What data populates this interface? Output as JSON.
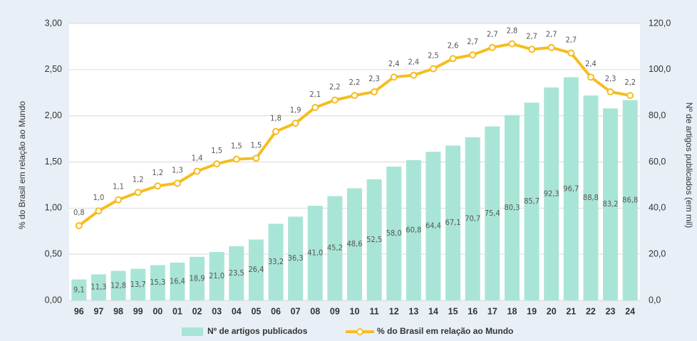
{
  "chart_data": {
    "type": "bar-line",
    "categories": [
      "96",
      "97",
      "98",
      "99",
      "00",
      "01",
      "02",
      "03",
      "04",
      "05",
      "06",
      "07",
      "08",
      "09",
      "10",
      "11",
      "12",
      "13",
      "14",
      "15",
      "16",
      "17",
      "18",
      "19",
      "20",
      "21",
      "22",
      "23",
      "24"
    ],
    "series": [
      {
        "name": "Nº de artigos publicados",
        "type": "bar",
        "axis": "y2",
        "color": "#a9e5d7",
        "values": [
          9.1,
          11.3,
          12.8,
          13.7,
          15.3,
          16.4,
          18.9,
          21.0,
          23.5,
          26.4,
          33.2,
          36.3,
          41.0,
          45.2,
          48.6,
          52.5,
          58.0,
          60.8,
          64.4,
          67.1,
          70.7,
          75.4,
          80.3,
          85.7,
          92.3,
          96.7,
          88.8,
          83.2,
          86.8
        ],
        "value_labels": [
          "9,1",
          "11,3",
          "12,8",
          "13,7",
          "15,3",
          "16,4",
          "18,9",
          "21,0",
          "23,5",
          "26,4",
          "33,2",
          "36,3",
          "41,0",
          "45,2",
          "48,6",
          "52,5",
          "58,0",
          "60,8",
          "64,4",
          "67,1",
          "70,7",
          "75,4",
          "80,3",
          "85,7",
          "92,3",
          "96,7",
          "88,8",
          "83,2",
          "86,8"
        ]
      },
      {
        "name": "% do Brasil em relação ao Mundo",
        "type": "line",
        "axis": "y",
        "color": "#f5bd1f",
        "values": [
          0.81,
          0.97,
          1.09,
          1.17,
          1.24,
          1.27,
          1.4,
          1.48,
          1.53,
          1.54,
          1.83,
          1.92,
          2.09,
          2.17,
          2.22,
          2.26,
          2.42,
          2.44,
          2.51,
          2.62,
          2.66,
          2.74,
          2.78,
          2.72,
          2.74,
          2.68,
          2.42,
          2.26,
          2.22
        ],
        "value_labels": [
          "0,8",
          "1,0",
          "1,1",
          "1,2",
          "1,2",
          "1,3",
          "1,4",
          "1,5",
          "1,5",
          "1,5",
          "1,8",
          "1,9",
          "2,1",
          "2,2",
          "2,2",
          "2,3",
          "2,4",
          "2,4",
          "2,5",
          "2,6",
          "2,7",
          "2,7",
          "2,8",
          "2,7",
          "2,7",
          "2,7",
          "2,4",
          "2,3",
          "2,2"
        ]
      }
    ],
    "ylabel": "% do Brasil em relação ao Mundo",
    "y2label": "Nº de artigos publicados (em mil)",
    "ylim": [
      0,
      3
    ],
    "yticks": [
      {
        "value": 0,
        "label": "0,00"
      },
      {
        "value": 0.5,
        "label": "0,50"
      },
      {
        "value": 1,
        "label": "1,00"
      },
      {
        "value": 1.5,
        "label": "1,50"
      },
      {
        "value": 2,
        "label": "2,00"
      },
      {
        "value": 2.5,
        "label": "2,50"
      },
      {
        "value": 3,
        "label": "3,00"
      }
    ],
    "y2lim": [
      0,
      120
    ],
    "y2ticks": [
      {
        "value": 0,
        "label": "0,0"
      },
      {
        "value": 20,
        "label": "20,0"
      },
      {
        "value": 40,
        "label": "40,0"
      },
      {
        "value": 60,
        "label": "60,0"
      },
      {
        "value": 80,
        "label": "80,0"
      },
      {
        "value": 100,
        "label": "100,0"
      },
      {
        "value": 120,
        "label": "120,0"
      }
    ],
    "legend": "bottom"
  }
}
